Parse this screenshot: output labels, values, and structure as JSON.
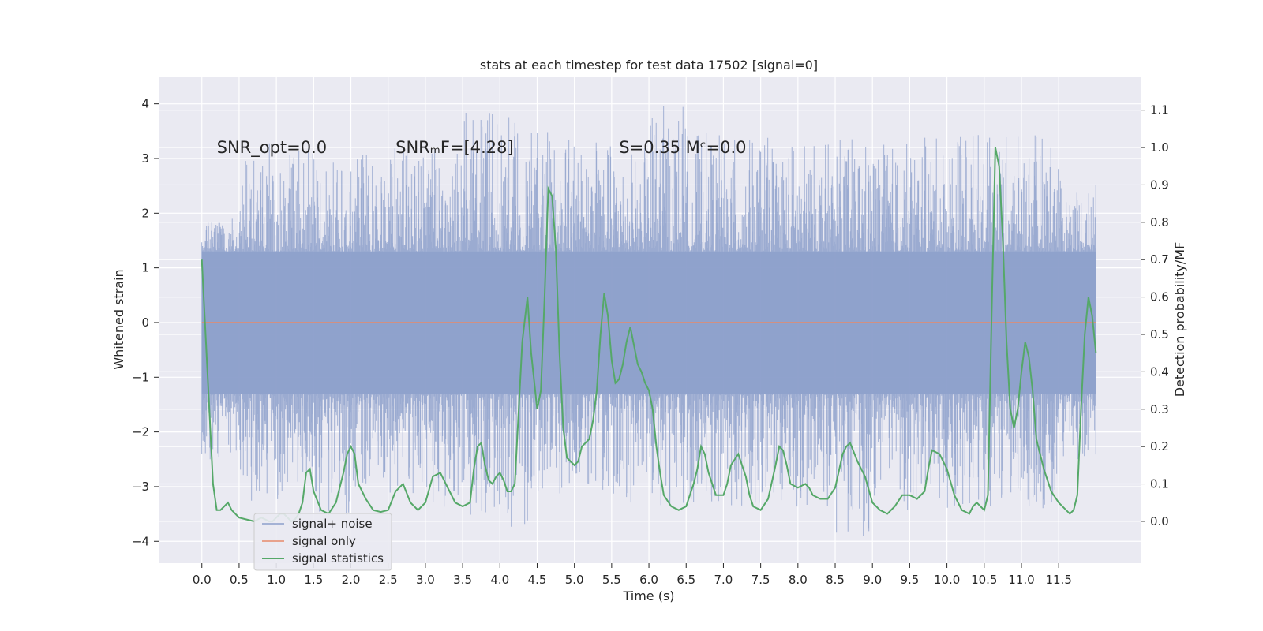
{
  "chart_data": {
    "type": "line",
    "title": "stats at each timestep for test data 17502 [signal=0]",
    "xlabel": "Time (s)",
    "ylabel": "Whitened strain",
    "y2label": "Detection probability/MF",
    "xlim": [
      -0.58,
      12.6
    ],
    "ylim": [
      -4.4,
      4.5
    ],
    "y2lim": [
      -0.112,
      1.19
    ],
    "x_ticks": [
      "0.0",
      "0.5",
      "1.0",
      "1.5",
      "2.0",
      "2.5",
      "3.0",
      "3.5",
      "4.0",
      "4.5",
      "5.0",
      "5.5",
      "6.0",
      "6.5",
      "7.0",
      "7.5",
      "8.0",
      "8.5",
      "9.0",
      "9.5",
      "10.0",
      "10.5",
      "11.0",
      "11.5"
    ],
    "y_ticks": [
      "−4",
      "−3",
      "−2",
      "−1",
      "0",
      "1",
      "2",
      "3",
      "4"
    ],
    "y2_ticks": [
      "0.0",
      "0.1",
      "0.2",
      "0.3",
      "0.4",
      "0.5",
      "0.6",
      "0.7",
      "0.8",
      "0.9",
      "1.0",
      "1.1"
    ],
    "grid": true,
    "legend_position": "lower-left",
    "annotations": [
      {
        "text": "SNR_opt=0.0",
        "x": 0.2,
        "y": 3.2
      },
      {
        "text": "SNRₘF=[4.28]",
        "x": 2.6,
        "y": 3.2
      },
      {
        "text": "S=0.35   Mᶜ=0.0",
        "x": 5.6,
        "y": 3.2
      }
    ],
    "series": [
      {
        "name": "signal+ noise",
        "axis": "left",
        "color": "#8da0cb",
        "range": [
          0,
          12.0
        ],
        "sample_rate_hz": 2048,
        "envelope_upper_approx": [
          1.9,
          3.3,
          3.2,
          3.0,
          3.1,
          3.3,
          3.2,
          3.9,
          3.8,
          3.5,
          3.3,
          3.2,
          4.05,
          3.5,
          3.4,
          3.4,
          3.3,
          3.4,
          3.3,
          3.4,
          3.6,
          3.4,
          3.5,
          2.6
        ],
        "envelope_lower_approx": [
          -2.5,
          -3.4,
          -3.3,
          -3.6,
          -3.0,
          -3.2,
          -3.5,
          -3.6,
          -3.9,
          -3.2,
          -3.1,
          -3.3,
          -3.4,
          -3.3,
          -3.4,
          -3.6,
          -3.5,
          -3.9,
          -3.5,
          -3.3,
          -3.4,
          -3.4,
          -3.4,
          -2.5
        ]
      },
      {
        "name": "signal only",
        "axis": "left",
        "color": "#e78a6a",
        "x": [
          0,
          12.0
        ],
        "y": [
          0,
          0
        ]
      },
      {
        "name": "signal statistics",
        "axis": "right",
        "color": "#55a868",
        "x": [
          0.0,
          0.1,
          0.15,
          0.2,
          0.25,
          0.3,
          0.35,
          0.4,
          0.45,
          0.5,
          0.6,
          0.7,
          0.8,
          0.9,
          0.95,
          1.0,
          1.05,
          1.1,
          1.15,
          1.2,
          1.25,
          1.3,
          1.35,
          1.4,
          1.45,
          1.5,
          1.6,
          1.7,
          1.8,
          1.9,
          1.95,
          2.0,
          2.05,
          2.1,
          2.2,
          2.3,
          2.4,
          2.5,
          2.6,
          2.7,
          2.8,
          2.9,
          3.0,
          3.1,
          3.2,
          3.3,
          3.4,
          3.5,
          3.6,
          3.65,
          3.7,
          3.75,
          3.8,
          3.85,
          3.9,
          3.95,
          4.0,
          4.05,
          4.1,
          4.15,
          4.2,
          4.3,
          4.37,
          4.42,
          4.5,
          4.55,
          4.6,
          4.65,
          4.7,
          4.75,
          4.8,
          4.85,
          4.9,
          4.95,
          5.0,
          5.05,
          5.1,
          5.2,
          5.25,
          5.3,
          5.35,
          5.4,
          5.45,
          5.5,
          5.55,
          5.6,
          5.65,
          5.7,
          5.75,
          5.8,
          5.85,
          5.9,
          5.95,
          6.0,
          6.05,
          6.1,
          6.15,
          6.2,
          6.3,
          6.4,
          6.5,
          6.6,
          6.65,
          6.7,
          6.75,
          6.8,
          6.85,
          6.9,
          7.0,
          7.05,
          7.1,
          7.2,
          7.3,
          7.35,
          7.4,
          7.5,
          7.6,
          7.7,
          7.75,
          7.8,
          7.85,
          7.9,
          8.0,
          8.1,
          8.15,
          8.2,
          8.3,
          8.4,
          8.5,
          8.6,
          8.65,
          8.7,
          8.8,
          8.9,
          9.0,
          9.1,
          9.2,
          9.3,
          9.4,
          9.5,
          9.6,
          9.7,
          9.75,
          9.8,
          9.9,
          10.0,
          10.1,
          10.2,
          10.3,
          10.35,
          10.4,
          10.45,
          10.5,
          10.55,
          10.6,
          10.65,
          10.7,
          10.75,
          10.8,
          10.85,
          10.9,
          10.95,
          11.0,
          11.05,
          11.1,
          11.15,
          11.2,
          11.3,
          11.4,
          11.5,
          11.6,
          11.65,
          11.7,
          11.75,
          11.8,
          11.85,
          11.9,
          11.95,
          12.0
        ],
        "y": [
          0.7,
          0.3,
          0.1,
          0.03,
          0.03,
          0.04,
          0.05,
          0.03,
          0.02,
          0.01,
          0.005,
          0.0,
          0.01,
          0.0,
          0.0,
          0.01,
          0.02,
          0.02,
          0.01,
          0.0,
          0.005,
          0.02,
          0.05,
          0.13,
          0.14,
          0.08,
          0.03,
          0.02,
          0.05,
          0.13,
          0.18,
          0.2,
          0.18,
          0.1,
          0.06,
          0.03,
          0.025,
          0.03,
          0.08,
          0.1,
          0.05,
          0.03,
          0.05,
          0.12,
          0.13,
          0.09,
          0.05,
          0.04,
          0.05,
          0.14,
          0.2,
          0.21,
          0.15,
          0.11,
          0.1,
          0.12,
          0.13,
          0.11,
          0.08,
          0.08,
          0.1,
          0.48,
          0.6,
          0.45,
          0.3,
          0.35,
          0.6,
          0.89,
          0.87,
          0.73,
          0.45,
          0.25,
          0.17,
          0.16,
          0.15,
          0.16,
          0.2,
          0.22,
          0.27,
          0.35,
          0.5,
          0.61,
          0.55,
          0.43,
          0.37,
          0.38,
          0.42,
          0.48,
          0.52,
          0.47,
          0.42,
          0.4,
          0.37,
          0.35,
          0.3,
          0.2,
          0.13,
          0.07,
          0.04,
          0.03,
          0.04,
          0.1,
          0.14,
          0.2,
          0.18,
          0.13,
          0.1,
          0.07,
          0.07,
          0.1,
          0.15,
          0.18,
          0.12,
          0.07,
          0.04,
          0.03,
          0.06,
          0.15,
          0.2,
          0.19,
          0.15,
          0.1,
          0.09,
          0.1,
          0.09,
          0.07,
          0.06,
          0.06,
          0.09,
          0.18,
          0.2,
          0.21,
          0.16,
          0.12,
          0.05,
          0.03,
          0.02,
          0.04,
          0.07,
          0.07,
          0.06,
          0.08,
          0.14,
          0.19,
          0.18,
          0.14,
          0.07,
          0.03,
          0.02,
          0.04,
          0.05,
          0.04,
          0.03,
          0.07,
          0.55,
          1.0,
          0.95,
          0.75,
          0.48,
          0.3,
          0.25,
          0.3,
          0.4,
          0.48,
          0.44,
          0.35,
          0.22,
          0.14,
          0.08,
          0.05,
          0.03,
          0.02,
          0.03,
          0.07,
          0.3,
          0.5,
          0.6,
          0.55,
          0.45
        ]
      }
    ]
  }
}
